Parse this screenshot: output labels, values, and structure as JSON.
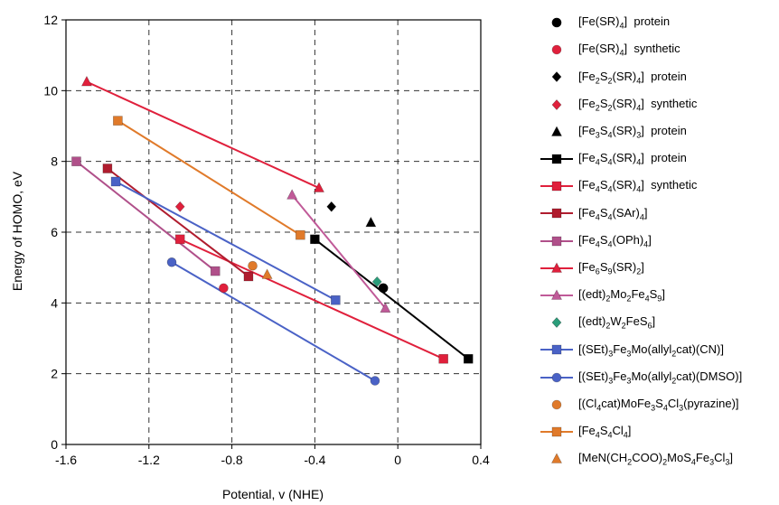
{
  "chart_data": {
    "type": "scatter",
    "xlabel": "Potential, v (NHE)",
    "ylabel": "Energy of HOMO, eV",
    "xlim": [
      -1.6,
      0.4
    ],
    "ylim": [
      0,
      12
    ],
    "xticks": [
      "-1.6",
      "-1.2",
      "-0.8",
      "-0.4",
      "0",
      "0.4"
    ],
    "yticks": [
      "0",
      "2",
      "4",
      "6",
      "8",
      "10",
      "12"
    ],
    "xtick_values": [
      -1.6,
      -1.2,
      -0.8,
      -0.4,
      0,
      0.4
    ],
    "ytick_values": [
      0,
      2,
      4,
      6,
      8,
      10,
      12
    ],
    "grid": true,
    "grid_style": "dashed",
    "legend_position": "right",
    "series": [
      {
        "label_html": "[Fe(SR)<sub>4</sub>]&nbsp; protein",
        "marker": "circle",
        "color": "#000000",
        "line": false,
        "points": [
          [
            -0.07,
            4.42
          ]
        ]
      },
      {
        "label_html": "[Fe(SR)<sub>4</sub>]&nbsp; synthetic",
        "marker": "circle",
        "color": "#e0203c",
        "line": false,
        "points": [
          [
            -0.84,
            4.42
          ]
        ]
      },
      {
        "label_html": "[Fe<sub>2</sub>S<sub>2</sub>(SR)<sub>4</sub>]&nbsp; protein",
        "marker": "diamond",
        "color": "#000000",
        "line": false,
        "points": [
          [
            -0.32,
            6.72
          ]
        ]
      },
      {
        "label_html": "[Fe<sub>2</sub>S<sub>2</sub>(SR)<sub>4</sub>]&nbsp; synthetic",
        "marker": "diamond",
        "color": "#e0203c",
        "line": false,
        "points": [
          [
            -1.05,
            6.72
          ]
        ]
      },
      {
        "label_html": "[Fe<sub>3</sub>S<sub>4</sub>(SR)<sub>3</sub>]&nbsp; protein",
        "marker": "triangle",
        "color": "#000000",
        "line": false,
        "points": [
          [
            -0.13,
            6.27
          ]
        ]
      },
      {
        "label_html": "[Fe<sub>4</sub>S<sub>4</sub>(SR)<sub>4</sub>]&nbsp; protein",
        "marker": "square",
        "color": "#000000",
        "line": true,
        "points": [
          [
            -0.4,
            5.8
          ],
          [
            0.34,
            2.42
          ]
        ]
      },
      {
        "label_html": "[Fe<sub>4</sub>S<sub>4</sub>(SR)<sub>4</sub>]&nbsp; synthetic",
        "marker": "square",
        "color": "#e0203c",
        "line": true,
        "points": [
          [
            -1.05,
            5.8
          ],
          [
            0.22,
            2.42
          ]
        ]
      },
      {
        "label_html": "[Fe<sub>4</sub>S<sub>4</sub>(SAr)<sub>4</sub>]",
        "marker": "square",
        "color": "#b01c2e",
        "line": true,
        "points": [
          [
            -1.4,
            7.8
          ],
          [
            -0.72,
            4.75
          ]
        ]
      },
      {
        "label_html": "[Fe<sub>4</sub>S<sub>4</sub>(OPh)<sub>4</sub>]",
        "marker": "square",
        "color": "#b0508a",
        "line": true,
        "points": [
          [
            -1.55,
            8.0
          ],
          [
            -0.88,
            4.9
          ]
        ]
      },
      {
        "label_html": "[Fe<sub>6</sub>S<sub>9</sub>(SR)<sub>2</sub>]",
        "marker": "triangle",
        "color": "#e0203c",
        "line": true,
        "points": [
          [
            -1.5,
            10.25
          ],
          [
            -0.38,
            7.25
          ]
        ]
      },
      {
        "label_html": "[(edt)<sub>2</sub>Mo<sub>2</sub>Fe<sub>4</sub>S<sub>9</sub>]",
        "marker": "triangle",
        "color": "#c05a98",
        "line": true,
        "points": [
          [
            -0.51,
            7.05
          ],
          [
            -0.06,
            3.85
          ]
        ]
      },
      {
        "label_html": "[(edt)<sub>2</sub>W<sub>2</sub>FeS<sub>6</sub>]",
        "marker": "diamond",
        "color": "#2a9d7a",
        "line": false,
        "points": [
          [
            -0.1,
            4.6
          ]
        ]
      },
      {
        "label_html": "[(SEt)<sub>3</sub>Fe<sub>3</sub>Mo(allyl<sub>2</sub>cat)(CN)]",
        "marker": "square",
        "color": "#4a62c6",
        "line": true,
        "points": [
          [
            -1.36,
            7.43
          ],
          [
            -0.3,
            4.08
          ]
        ]
      },
      {
        "label_html": "[(SEt)<sub>3</sub>Fe<sub>3</sub>Mo(allyl<sub>2</sub>cat)(DMSO)]",
        "marker": "circle",
        "color": "#4a62c6",
        "line": true,
        "points": [
          [
            -1.09,
            5.15
          ],
          [
            -0.11,
            1.8
          ]
        ]
      },
      {
        "label_html": "[(Cl<sub>4</sub>cat)MoFe<sub>3</sub>S<sub>4</sub>Cl<sub>3</sub>(pyrazine)]",
        "marker": "circle",
        "color": "#e07a2a",
        "line": false,
        "points": [
          [
            -0.7,
            5.05
          ]
        ]
      },
      {
        "label_html": "[Fe<sub>4</sub>S<sub>4</sub>Cl<sub>4</sub>]",
        "marker": "square",
        "color": "#e07a2a",
        "line": true,
        "points": [
          [
            -1.35,
            9.15
          ],
          [
            -0.47,
            5.92
          ]
        ]
      },
      {
        "label_html": "[MeN(CH<sub>2</sub>COO)<sub>2</sub>MoS<sub>4</sub>Fe<sub>3</sub>Cl<sub>3</sub>]",
        "marker": "triangle",
        "color": "#e07a2a",
        "line": false,
        "points": [
          [
            -0.63,
            4.8
          ]
        ]
      }
    ]
  }
}
